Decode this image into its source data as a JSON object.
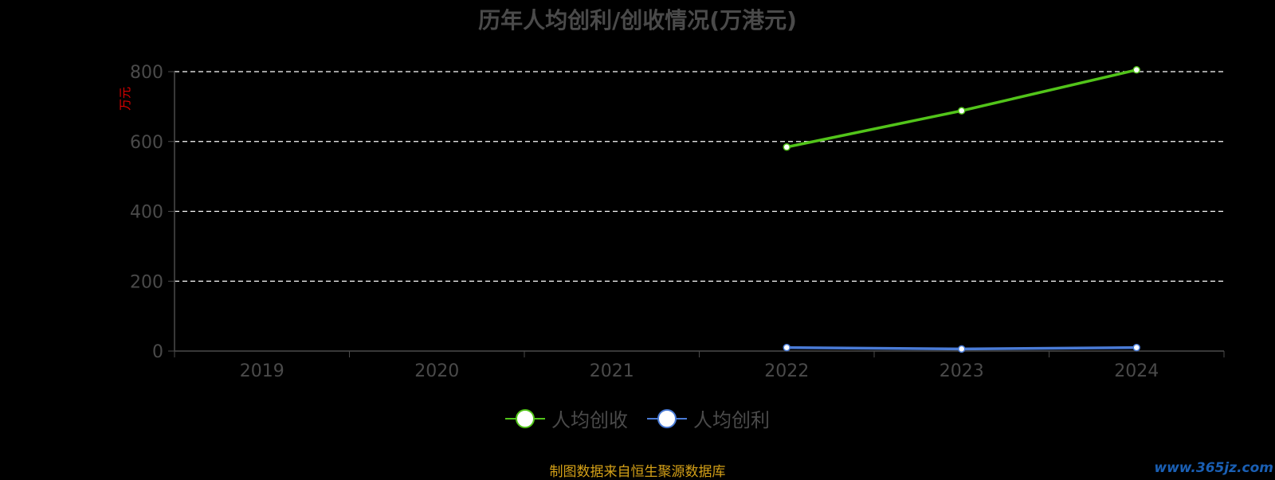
{
  "chart_data": {
    "type": "line",
    "title": "历年人均创利/创收情况(万港元)",
    "ylabel": "万元",
    "categories": [
      "2019",
      "2020",
      "2021",
      "2022",
      "2023",
      "2024"
    ],
    "ylim": [
      0,
      800
    ],
    "yticks": [
      0,
      200,
      400,
      600,
      800
    ],
    "grid": true,
    "legend_position": "bottom",
    "series": [
      {
        "name": "人均创收",
        "color": "#52c41a",
        "values": [
          null,
          null,
          null,
          584,
          688,
          805
        ]
      },
      {
        "name": "人均创利",
        "color": "#4a7bd6",
        "values": [
          null,
          null,
          null,
          10,
          6,
          10
        ]
      }
    ]
  },
  "source_note": "制图数据来自恒生聚源数据库",
  "watermark": "www.365jz.com"
}
